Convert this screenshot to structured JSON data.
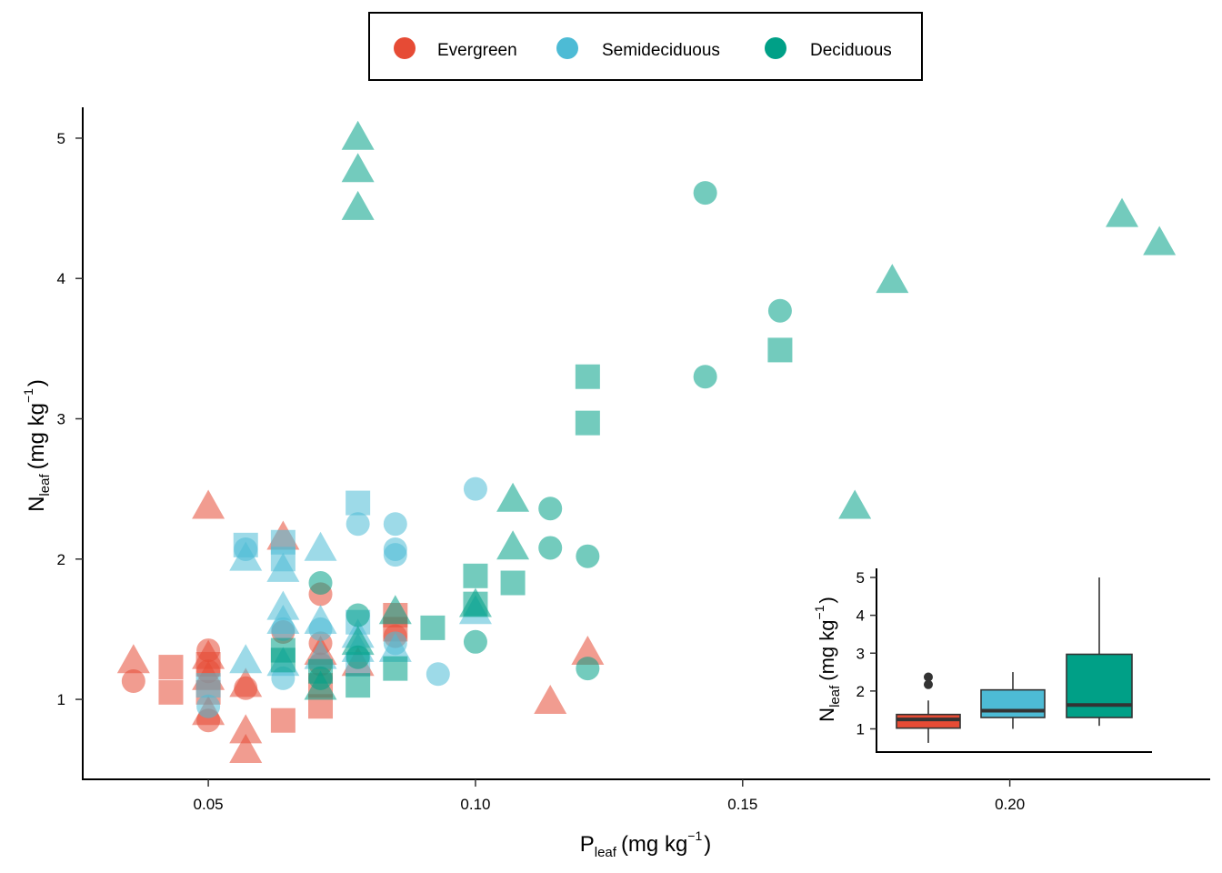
{
  "chart_data": [
    {
      "type": "scatter",
      "title": "",
      "xlabel": {
        "main": "P",
        "sub": "leaf",
        "unit": "(mg kg",
        "sup": "−1",
        "close": ")"
      },
      "ylabel": {
        "main": "N",
        "sub": "leaf",
        "unit": "(mg kg",
        "sup": "−1",
        "close": ")"
      },
      "xlim": [
        0.0265,
        0.2375
      ],
      "ylim": [
        0.43,
        5.22
      ],
      "x_ticks": [
        0.05,
        0.1,
        0.15,
        0.2
      ],
      "x_tick_labels": [
        "0.05",
        "0.10",
        "0.15",
        "0.20"
      ],
      "y_ticks": [
        1,
        2,
        3,
        4,
        5
      ],
      "y_tick_labels": [
        "1",
        "2",
        "3",
        "4",
        "5"
      ],
      "grid": false,
      "legend": {
        "placement": "top-center",
        "entries": [
          {
            "label": "Evergreen",
            "color": "#E64B35"
          },
          {
            "label": "Semideciduous",
            "color": "#4DBBD5"
          },
          {
            "label": "Deciduous",
            "color": "#00A087"
          }
        ]
      },
      "point_alpha": 0.55,
      "shape_encoding": "circle / square / triangle distinguish sub-groups (no shape legend shown)",
      "series": [
        {
          "name": "Evergreen",
          "color": "#E64B35",
          "points": [
            {
              "x": 0.036,
              "y": 1.13,
              "shape": "circle"
            },
            {
              "x": 0.036,
              "y": 1.27,
              "shape": "triangle"
            },
            {
              "x": 0.043,
              "y": 1.23,
              "shape": "square"
            },
            {
              "x": 0.043,
              "y": 1.05,
              "shape": "square"
            },
            {
              "x": 0.05,
              "y": 2.37,
              "shape": "triangle"
            },
            {
              "x": 0.05,
              "y": 1.35,
              "shape": "circle"
            },
            {
              "x": 0.05,
              "y": 1.3,
              "shape": "triangle"
            },
            {
              "x": 0.05,
              "y": 1.25,
              "shape": "square"
            },
            {
              "x": 0.05,
              "y": 1.2,
              "shape": "circle"
            },
            {
              "x": 0.05,
              "y": 1.15,
              "shape": "triangle"
            },
            {
              "x": 0.05,
              "y": 1.05,
              "shape": "square"
            },
            {
              "x": 0.05,
              "y": 0.9,
              "shape": "triangle"
            },
            {
              "x": 0.05,
              "y": 0.85,
              "shape": "circle"
            },
            {
              "x": 0.057,
              "y": 1.1,
              "shape": "triangle"
            },
            {
              "x": 0.057,
              "y": 1.08,
              "shape": "circle"
            },
            {
              "x": 0.057,
              "y": 0.77,
              "shape": "triangle"
            },
            {
              "x": 0.057,
              "y": 0.63,
              "shape": "triangle"
            },
            {
              "x": 0.064,
              "y": 2.15,
              "shape": "triangle"
            },
            {
              "x": 0.064,
              "y": 1.48,
              "shape": "circle"
            },
            {
              "x": 0.064,
              "y": 0.85,
              "shape": "square"
            },
            {
              "x": 0.071,
              "y": 1.75,
              "shape": "circle"
            },
            {
              "x": 0.071,
              "y": 1.4,
              "shape": "circle"
            },
            {
              "x": 0.071,
              "y": 1.33,
              "shape": "triangle"
            },
            {
              "x": 0.071,
              "y": 1.25,
              "shape": "circle"
            },
            {
              "x": 0.071,
              "y": 1.1,
              "shape": "square"
            },
            {
              "x": 0.071,
              "y": 0.95,
              "shape": "square"
            },
            {
              "x": 0.078,
              "y": 1.25,
              "shape": "triangle"
            },
            {
              "x": 0.085,
              "y": 1.6,
              "shape": "square"
            },
            {
              "x": 0.085,
              "y": 1.5,
              "shape": "square"
            },
            {
              "x": 0.085,
              "y": 1.45,
              "shape": "circle"
            },
            {
              "x": 0.114,
              "y": 0.98,
              "shape": "triangle"
            },
            {
              "x": 0.121,
              "y": 1.33,
              "shape": "triangle"
            }
          ]
        },
        {
          "name": "Semideciduous",
          "color": "#4DBBD5",
          "points": [
            {
              "x": 0.05,
              "y": 1.1,
              "shape": "square"
            },
            {
              "x": 0.05,
              "y": 0.95,
              "shape": "circle"
            },
            {
              "x": 0.057,
              "y": 2.1,
              "shape": "square"
            },
            {
              "x": 0.057,
              "y": 2.07,
              "shape": "circle"
            },
            {
              "x": 0.057,
              "y": 2.0,
              "shape": "triangle"
            },
            {
              "x": 0.057,
              "y": 1.27,
              "shape": "triangle"
            },
            {
              "x": 0.064,
              "y": 2.12,
              "shape": "square"
            },
            {
              "x": 0.064,
              "y": 2.0,
              "shape": "square"
            },
            {
              "x": 0.064,
              "y": 1.92,
              "shape": "triangle"
            },
            {
              "x": 0.064,
              "y": 1.65,
              "shape": "triangle"
            },
            {
              "x": 0.064,
              "y": 1.55,
              "shape": "triangle"
            },
            {
              "x": 0.064,
              "y": 1.5,
              "shape": "circle"
            },
            {
              "x": 0.064,
              "y": 1.25,
              "shape": "triangle"
            },
            {
              "x": 0.064,
              "y": 1.15,
              "shape": "circle"
            },
            {
              "x": 0.071,
              "y": 2.07,
              "shape": "triangle"
            },
            {
              "x": 0.071,
              "y": 1.55,
              "shape": "triangle"
            },
            {
              "x": 0.071,
              "y": 1.5,
              "shape": "circle"
            },
            {
              "x": 0.071,
              "y": 1.3,
              "shape": "triangle"
            },
            {
              "x": 0.078,
              "y": 2.4,
              "shape": "square"
            },
            {
              "x": 0.078,
              "y": 2.25,
              "shape": "circle"
            },
            {
              "x": 0.078,
              "y": 1.55,
              "shape": "square"
            },
            {
              "x": 0.078,
              "y": 1.45,
              "shape": "triangle"
            },
            {
              "x": 0.078,
              "y": 1.35,
              "shape": "triangle"
            },
            {
              "x": 0.078,
              "y": 1.25,
              "shape": "square"
            },
            {
              "x": 0.085,
              "y": 2.25,
              "shape": "circle"
            },
            {
              "x": 0.085,
              "y": 2.07,
              "shape": "circle"
            },
            {
              "x": 0.085,
              "y": 2.03,
              "shape": "circle"
            },
            {
              "x": 0.085,
              "y": 1.4,
              "shape": "circle"
            },
            {
              "x": 0.085,
              "y": 1.35,
              "shape": "triangle"
            },
            {
              "x": 0.093,
              "y": 1.18,
              "shape": "circle"
            },
            {
              "x": 0.1,
              "y": 2.5,
              "shape": "circle"
            },
            {
              "x": 0.1,
              "y": 1.62,
              "shape": "triangle"
            }
          ]
        },
        {
          "name": "Deciduous",
          "color": "#00A087",
          "points": [
            {
              "x": 0.064,
              "y": 1.35,
              "shape": "square"
            },
            {
              "x": 0.064,
              "y": 1.28,
              "shape": "square"
            },
            {
              "x": 0.071,
              "y": 1.83,
              "shape": "circle"
            },
            {
              "x": 0.071,
              "y": 1.2,
              "shape": "square"
            },
            {
              "x": 0.071,
              "y": 1.15,
              "shape": "circle"
            },
            {
              "x": 0.071,
              "y": 1.08,
              "shape": "triangle"
            },
            {
              "x": 0.078,
              "y": 5.0,
              "shape": "triangle"
            },
            {
              "x": 0.078,
              "y": 4.77,
              "shape": "triangle"
            },
            {
              "x": 0.078,
              "y": 4.5,
              "shape": "triangle"
            },
            {
              "x": 0.078,
              "y": 1.6,
              "shape": "circle"
            },
            {
              "x": 0.078,
              "y": 1.4,
              "shape": "triangle"
            },
            {
              "x": 0.078,
              "y": 1.3,
              "shape": "circle"
            },
            {
              "x": 0.078,
              "y": 1.1,
              "shape": "square"
            },
            {
              "x": 0.085,
              "y": 1.62,
              "shape": "triangle"
            },
            {
              "x": 0.085,
              "y": 1.22,
              "shape": "square"
            },
            {
              "x": 0.092,
              "y": 1.51,
              "shape": "square"
            },
            {
              "x": 0.1,
              "y": 1.88,
              "shape": "square"
            },
            {
              "x": 0.1,
              "y": 1.68,
              "shape": "square"
            },
            {
              "x": 0.1,
              "y": 1.67,
              "shape": "triangle"
            },
            {
              "x": 0.1,
              "y": 1.41,
              "shape": "circle"
            },
            {
              "x": 0.107,
              "y": 2.42,
              "shape": "triangle"
            },
            {
              "x": 0.107,
              "y": 2.08,
              "shape": "triangle"
            },
            {
              "x": 0.107,
              "y": 1.83,
              "shape": "square"
            },
            {
              "x": 0.114,
              "y": 2.36,
              "shape": "circle"
            },
            {
              "x": 0.114,
              "y": 2.08,
              "shape": "circle"
            },
            {
              "x": 0.121,
              "y": 3.3,
              "shape": "square"
            },
            {
              "x": 0.121,
              "y": 2.97,
              "shape": "square"
            },
            {
              "x": 0.121,
              "y": 2.02,
              "shape": "circle"
            },
            {
              "x": 0.121,
              "y": 1.22,
              "shape": "circle"
            },
            {
              "x": 0.143,
              "y": 4.61,
              "shape": "circle"
            },
            {
              "x": 0.143,
              "y": 3.3,
              "shape": "circle"
            },
            {
              "x": 0.157,
              "y": 3.77,
              "shape": "circle"
            },
            {
              "x": 0.157,
              "y": 3.49,
              "shape": "square"
            },
            {
              "x": 0.171,
              "y": 2.37,
              "shape": "triangle"
            },
            {
              "x": 0.178,
              "y": 3.98,
              "shape": "triangle"
            },
            {
              "x": 0.221,
              "y": 4.45,
              "shape": "triangle"
            },
            {
              "x": 0.228,
              "y": 4.25,
              "shape": "triangle"
            }
          ]
        }
      ]
    },
    {
      "type": "box",
      "title": "",
      "xlabel": "",
      "ylabel": {
        "main": "N",
        "sub": "leaf",
        "unit": "(mg kg",
        "sup": "−1",
        "close": ")"
      },
      "ylim": [
        0.4,
        5.2
      ],
      "y_ticks": [
        1,
        2,
        3,
        4,
        5
      ],
      "y_tick_labels": [
        "1",
        "2",
        "3",
        "4",
        "5"
      ],
      "grid": false,
      "placement": "bottom-right inset",
      "categories": [
        "Evergreen",
        "Semideciduous",
        "Deciduous"
      ],
      "boxes": [
        {
          "name": "Evergreen",
          "color": "#E64B35",
          "whisker_low": 0.63,
          "q1": 1.02,
          "median": 1.25,
          "q3": 1.38,
          "whisker_high": 1.75,
          "outliers": [
            2.17,
            2.37
          ]
        },
        {
          "name": "Semideciduous",
          "color": "#4DBBD5",
          "whisker_low": 1.0,
          "q1": 1.3,
          "median": 1.48,
          "q3": 2.03,
          "whisker_high": 2.5,
          "outliers": []
        },
        {
          "name": "Deciduous",
          "color": "#00A087",
          "whisker_low": 1.08,
          "q1": 1.3,
          "median": 1.63,
          "q3": 2.97,
          "whisker_high": 5.0,
          "outliers": []
        }
      ]
    }
  ]
}
